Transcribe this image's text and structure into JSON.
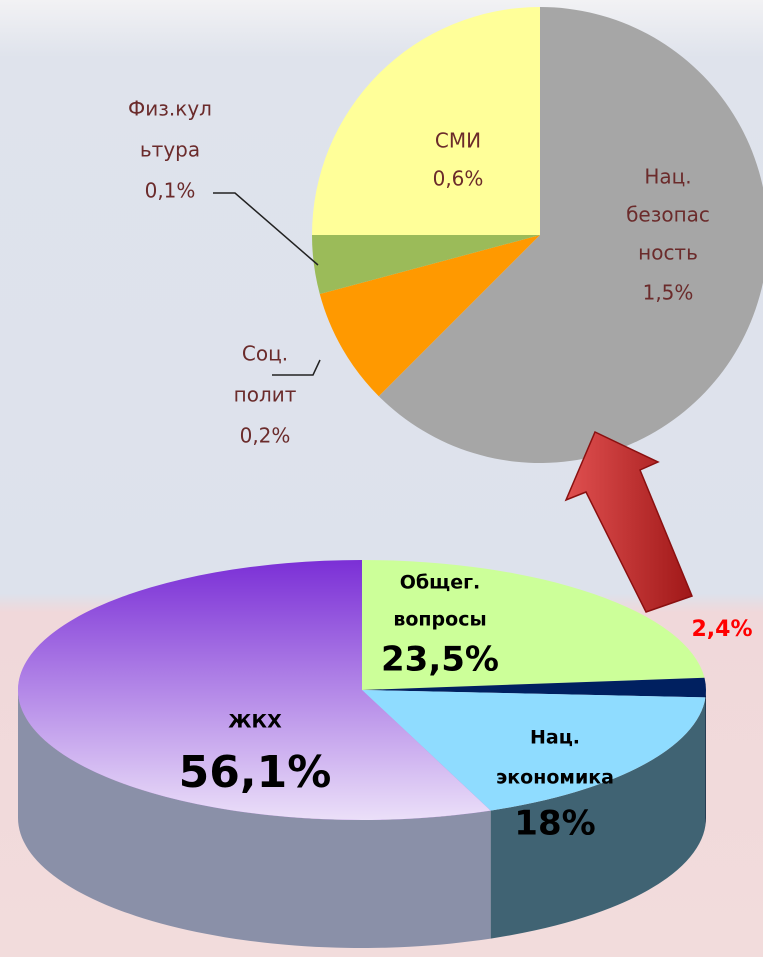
{
  "chart_data": [
    {
      "type": "pie",
      "categories": [
        [
          "Нац.",
          "безопас",
          "ность"
        ],
        [
          "Соц.",
          "полит"
        ],
        [
          "Физ.кул",
          "ьтура"
        ],
        [
          "СМИ"
        ]
      ],
      "values": [
        1.5,
        0.2,
        0.1,
        0.6
      ],
      "value_labels": [
        "1,5%",
        "0,2%",
        "0,1%",
        "0,6%"
      ],
      "colors": [
        "#a6a6a6",
        "#ff9900",
        "#9bbb59",
        "#ffff99"
      ]
    },
    {
      "type": "pie3d",
      "categories": [
        [
          "Общег.",
          "вопросы"
        ],
        null,
        [
          "Нац.",
          "экономика"
        ],
        [
          "ЖКХ"
        ]
      ],
      "values": [
        23.5,
        2.4,
        18,
        56.1
      ],
      "value_labels": [
        "23,5%",
        "2,4%",
        "18%",
        "56,1%"
      ],
      "colors": [
        "#ccff99",
        "#002060",
        "#8fdcff",
        "#7b2fd6"
      ]
    }
  ]
}
